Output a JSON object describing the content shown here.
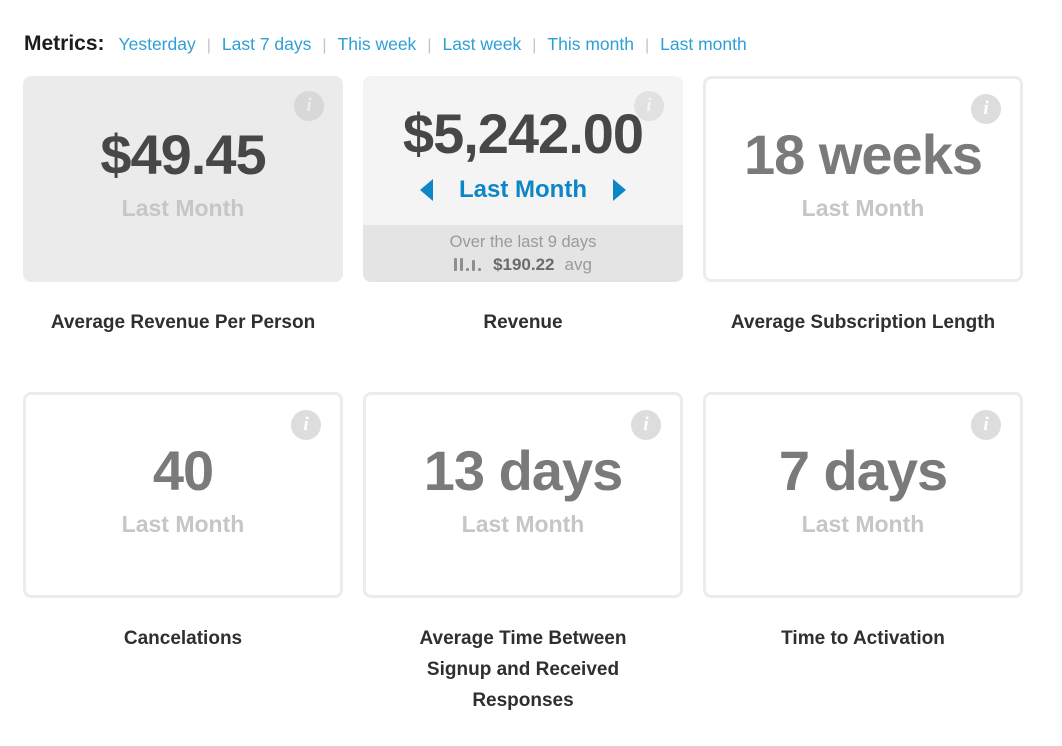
{
  "header": {
    "title": "Metrics:",
    "separator": "|",
    "links": [
      {
        "label": "Yesterday"
      },
      {
        "label": "Last 7 days"
      },
      {
        "label": "This week"
      },
      {
        "label": "Last week"
      },
      {
        "label": "This month"
      },
      {
        "label": "Last month"
      }
    ]
  },
  "cards": [
    {
      "value": "$49.45",
      "period": "Last Month",
      "caption": "Average Revenue Per Person",
      "info_icon": "i"
    },
    {
      "value": "$5,242.00",
      "nav_label": "Last Month",
      "caption": "Revenue",
      "info_icon": "i",
      "footer": {
        "line1": "Over the last 9 days",
        "avg_value": "$190.22",
        "avg_suffix": "avg"
      }
    },
    {
      "value": "18 weeks",
      "period": "Last Month",
      "caption": "Average Subscription Length",
      "info_icon": "i"
    },
    {
      "value": "40",
      "period": "Last Month",
      "caption": "Cancelations",
      "info_icon": "i"
    },
    {
      "value": "13 days",
      "period": "Last Month",
      "caption": "Average Time Between Signup and Received Responses",
      "info_icon": "i"
    },
    {
      "value": "7 days",
      "period": "Last Month",
      "caption": "Time to Activation",
      "info_icon": "i"
    }
  ],
  "colors": {
    "link_blue": "#2e9fd6",
    "nav_blue": "#0e86c6",
    "gray_card_bg": "#ebebeb",
    "white_card_border": "#ececec",
    "split_card_top": "#f4f4f4",
    "split_card_footer": "#e4e4e4",
    "value_dark": "#474747",
    "value_light": "#7a7a7a",
    "period_gray": "#c6c6c6",
    "caption_dark": "#2f2f2f"
  }
}
